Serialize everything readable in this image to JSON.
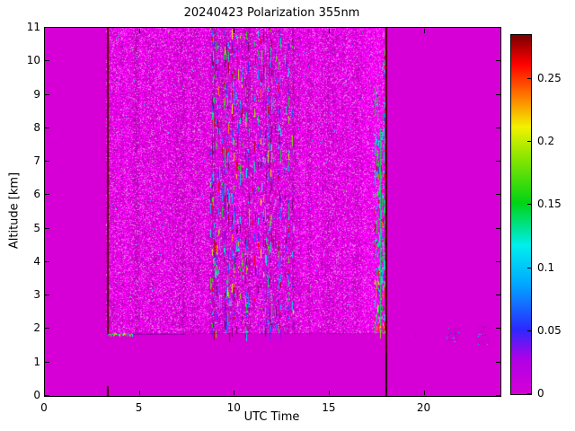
{
  "chart_data": {
    "type": "heatmap",
    "title": "20240423 Polarization 355nm",
    "xlabel": "UTC Time",
    "ylabel": "Altitude [km]",
    "x_range": [
      0,
      24
    ],
    "y_range": [
      0,
      11
    ],
    "x_ticks": [
      0,
      5,
      10,
      15,
      20
    ],
    "y_ticks": [
      0,
      1,
      2,
      3,
      4,
      5,
      6,
      7,
      8,
      9,
      10,
      11
    ],
    "value_range": [
      0,
      0.285
    ],
    "colorbar_ticks": [
      {
        "v": 0,
        "label": "0"
      },
      {
        "v": 0.05,
        "label": "0.05"
      },
      {
        "v": 0.1,
        "label": "0.1"
      },
      {
        "v": 0.15,
        "label": "0.15"
      },
      {
        "v": 0.2,
        "label": "0.2"
      },
      {
        "v": 0.25,
        "label": "0.25"
      }
    ],
    "colormap": [
      [
        0.0,
        "#d600d6"
      ],
      [
        0.028,
        "#b000e6"
      ],
      [
        0.052,
        "#2a2aff"
      ],
      [
        0.088,
        "#00aaff"
      ],
      [
        0.118,
        "#00eeee"
      ],
      [
        0.152,
        "#00d414"
      ],
      [
        0.188,
        "#8ce600"
      ],
      [
        0.212,
        "#f2f200"
      ],
      [
        0.235,
        "#ff8000"
      ],
      [
        0.262,
        "#ff0000"
      ],
      [
        0.285,
        "#7a0000"
      ]
    ],
    "background_value": 0,
    "features": [
      {
        "type": "noise",
        "x": [
          3.22,
          17.88
        ],
        "y": [
          1.85,
          11
        ],
        "pink_speckle": 0.16,
        "dot_rate": 0.004,
        "desc": "measurement period ~03:15-17:55 UTC: mottled magenta low-depolarization background with faint pink speckle noise above ~1.85 km"
      },
      {
        "type": "brighten",
        "x": [
          15.6,
          17.85
        ],
        "y": [
          1.85,
          11
        ],
        "desc": "noise brightens toward end of measurement period"
      },
      {
        "type": "column_speckles",
        "x": [
          8.65,
          13.05
        ],
        "y": [
          1.9,
          11
        ],
        "desc": "band of noisy vertical stripes ~08:40-13:00 UTC with blue/cyan/green and dark-red speckles at all altitudes"
      },
      {
        "type": "vline",
        "x": 3.25,
        "y": [
          1.85,
          11
        ],
        "color": "#5a0000",
        "w": 2,
        "desc": "dark red vertical line at measurement start ~03:15 UTC"
      },
      {
        "type": "vline",
        "x": 3.25,
        "y": [
          0,
          0.3
        ],
        "color": "#3a0000",
        "w": 2,
        "desc": "dark specks at ground level below start line"
      },
      {
        "type": "hline",
        "x": [
          3.25,
          17.92
        ],
        "y": 1.87,
        "color": "rgba(140,0,140,0.55)",
        "w": 1,
        "desc": "faint boundary at ~1.85 km across measurement period"
      },
      {
        "type": "hline_segments",
        "x": [
          3.3,
          4.65
        ],
        "y": 1.85,
        "values": [
          0.08,
          0.26
        ],
        "desc": "bright multicolour streak at ~1.85 km, ~03:20-04:40 UTC"
      },
      {
        "type": "hline",
        "x": [
          4.65,
          7.4
        ],
        "y": 1.85,
        "color": "#9b00b4",
        "w": 1,
        "desc": "thin dark boundary line continuing to ~07:25 UTC"
      },
      {
        "type": "green_band",
        "x": [
          17.35,
          17.95
        ],
        "y": [
          1.9,
          10.6
        ],
        "desc": "strong depolarization band just before ~18 UTC: green/cyan speckles, yellow-red near 2-3.5 km"
      },
      {
        "type": "vline",
        "x": 17.92,
        "y": [
          0,
          11
        ],
        "color": "#4a0000",
        "w": 2,
        "dark_bottom": true,
        "desc": "dark vertical line at measurement end reaching ground"
      },
      {
        "type": "patch_speckles",
        "x": [
          19.2,
          19.55
        ],
        "y": [
          1.8,
          2.0
        ],
        "density": 0.08,
        "desc": "tiny speckle patch ~19:20 UTC near 1.9 km"
      },
      {
        "type": "patch_speckles",
        "x": [
          21.15,
          21.8
        ],
        "y": [
          1.65,
          2.05
        ],
        "density": 0.18,
        "desc": "speckle patch ~21:30 UTC near 1.8 km"
      },
      {
        "type": "patch_speckles",
        "x": [
          22.75,
          23.4
        ],
        "y": [
          1.55,
          2.1
        ],
        "density": 0.18,
        "desc": "speckle patch ~23 UTC near 1.8 km"
      }
    ]
  }
}
